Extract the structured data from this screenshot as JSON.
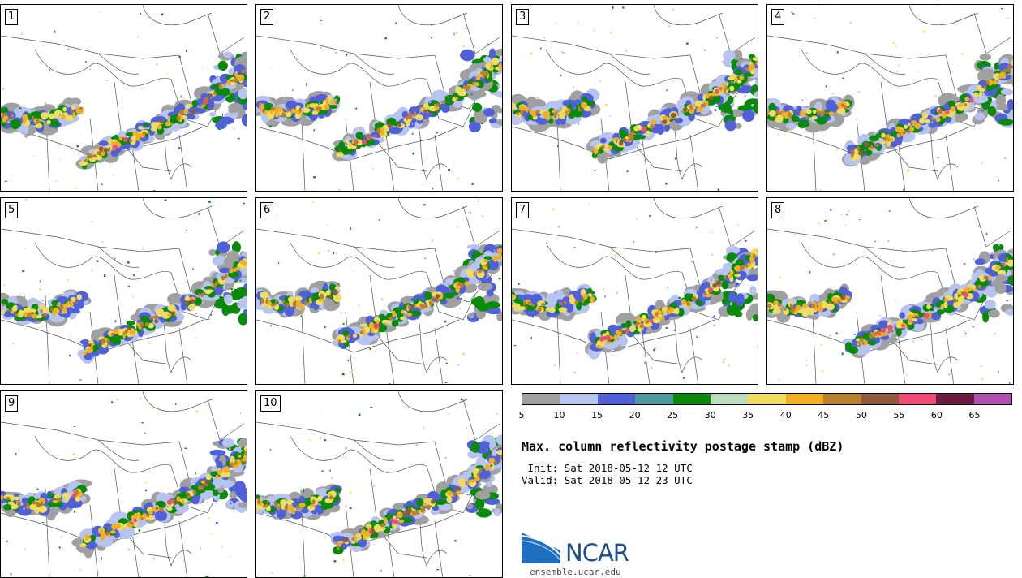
{
  "panels": [
    {
      "label": "1"
    },
    {
      "label": "2"
    },
    {
      "label": "3"
    },
    {
      "label": "4"
    },
    {
      "label": "5"
    },
    {
      "label": "6"
    },
    {
      "label": "7"
    },
    {
      "label": "8"
    },
    {
      "label": "9"
    },
    {
      "label": "10"
    }
  ],
  "colorbar": {
    "colors": [
      "#a0a0a0",
      "#b8c4f0",
      "#5060d8",
      "#4f9a9c",
      "#0a8a0a",
      "#bcdcbc",
      "#f0dc60",
      "#f0b020",
      "#b8802c",
      "#8c5a3c",
      "#f04c78",
      "#6c1a40",
      "#b050b0"
    ],
    "ticks": [
      "5",
      "10",
      "15",
      "20",
      "25",
      "30",
      "35",
      "40",
      "45",
      "50",
      "55",
      "60",
      "65"
    ]
  },
  "title": "Max. column reflectivity postage stamp (dBZ)",
  "init": " Init: Sat 2018-05-12 12 UTC",
  "valid": "Valid: Sat 2018-05-12 23 UTC",
  "logo": {
    "name": "NCAR",
    "url": "ensemble.ucar.edu"
  }
}
